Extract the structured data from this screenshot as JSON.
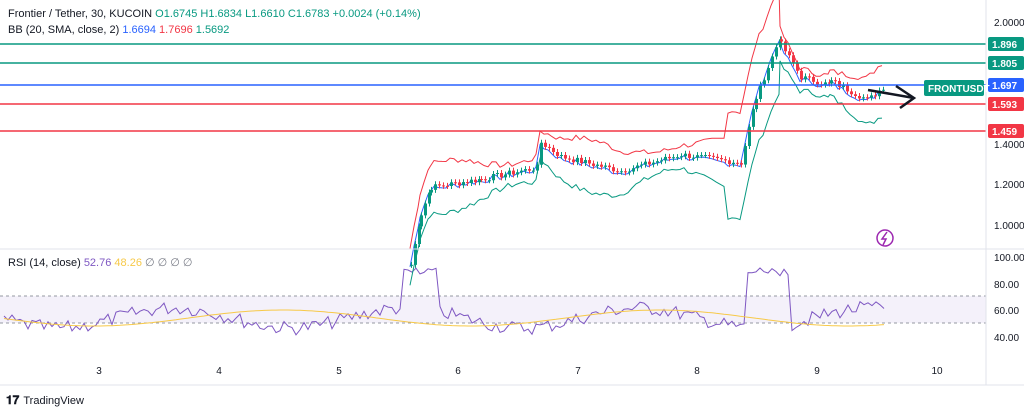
{
  "header": {
    "symbol": "Frontier / Tether, 30, KUCOIN",
    "open": "O1.6745",
    "high": "H1.6834",
    "low": "L1.6610",
    "close": "C1.6783",
    "change": "+0.0024 (+0.14%)"
  },
  "bb": {
    "label": "BB (20, SMA, close, 2)",
    "basis": "1.6694",
    "upper": "1.7696",
    "lower": "1.5692"
  },
  "rsi": {
    "label": "RSI (14, close)",
    "value": "52.76",
    "ma": "48.26",
    "na": "∅ ∅ ∅ ∅"
  },
  "price_axis": [
    "2.0000",
    "1.4000",
    "1.2000",
    "1.0000"
  ],
  "rsi_axis": [
    "100.00",
    "80.00",
    "60.00",
    "40.00"
  ],
  "time_axis": [
    "3",
    "4",
    "5",
    "6",
    "7",
    "8",
    "9",
    "10"
  ],
  "levels": [
    {
      "label": "1.896",
      "color": "#089981"
    },
    {
      "label": "1.805",
      "color": "#089981"
    },
    {
      "label": "1.697",
      "color": "#2962ff"
    },
    {
      "label": "1.593",
      "color": "#f23645"
    },
    {
      "label": "1.459",
      "color": "#f23645"
    }
  ],
  "ticker_tag": "FRONTUSDT",
  "footer": {
    "brand": "TradingView"
  },
  "colors": {
    "up": "#089981",
    "down": "#f23645",
    "basis": "#2962ff",
    "rsi": "#7e57c2",
    "rsi_ma": "#f7c948",
    "band_fill": "#e3f2fd"
  }
}
